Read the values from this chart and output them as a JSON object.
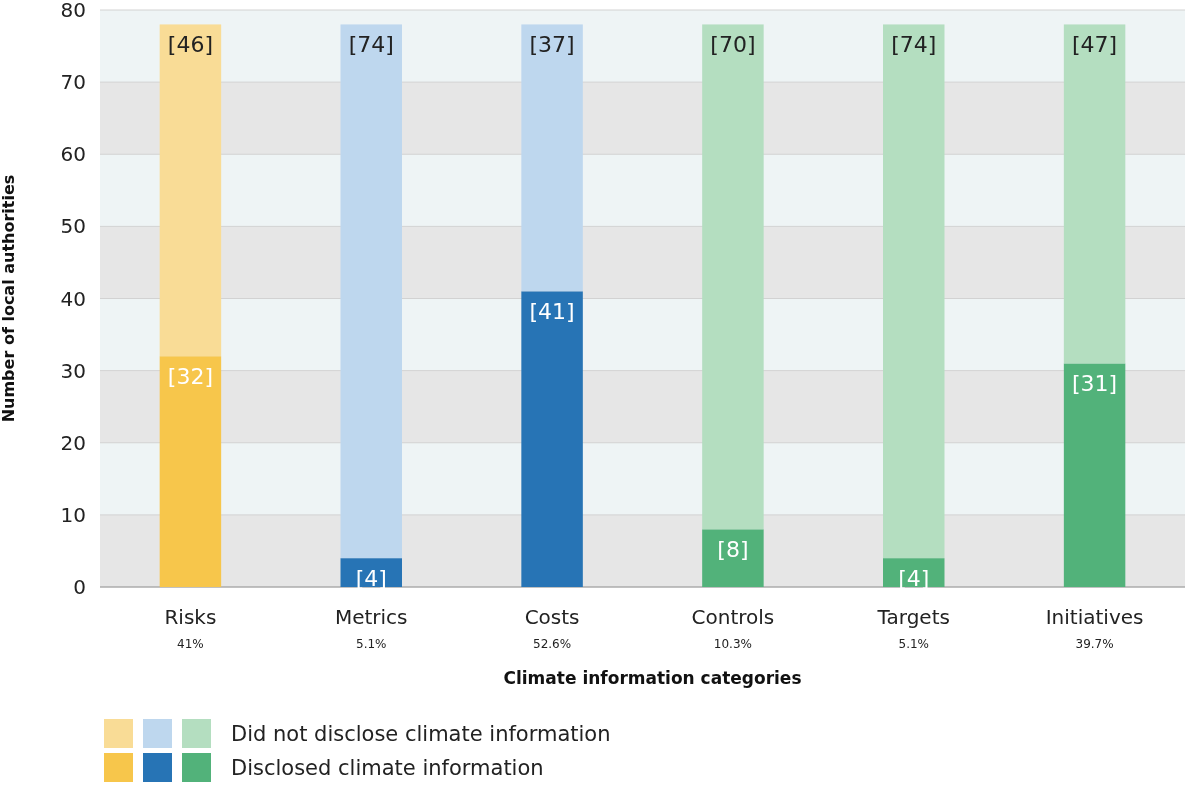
{
  "chart_data": {
    "type": "bar",
    "stacked": true,
    "xlabel": "Climate information categories",
    "ylabel": "Number of local authorities",
    "categories": [
      "Risks",
      "Metrics",
      "Costs",
      "Controls",
      "Targets",
      "Initiatives"
    ],
    "series": [
      {
        "name": "Disclosed climate information",
        "colors": [
          "#f7c64b",
          "#2774b5",
          "#2774b5",
          "#52b27a",
          "#52b27a",
          "#52b27a"
        ],
        "values": [
          32,
          4,
          41,
          8,
          4,
          31
        ],
        "value_labels": [
          "[32]",
          "[4]",
          "[41]",
          "[8]",
          "[4]",
          "[31]"
        ]
      },
      {
        "name": "Did not disclose climate information",
        "colors": [
          "#f9dc96",
          "#bed7ee",
          "#bed7ee",
          "#b4dec0",
          "#b4dec0",
          "#b4dec0"
        ],
        "values": [
          46,
          74,
          37,
          70,
          74,
          47
        ],
        "value_labels": [
          "[46]",
          "[74]",
          "[37]",
          "[70]",
          "[74]",
          "[47]"
        ]
      }
    ],
    "annotations": [
      "41%",
      "5.1%",
      "52.6%",
      "10.3%",
      "5.1%",
      "39.7%"
    ],
    "ylim": [
      0,
      80
    ],
    "yticks": [
      0,
      10,
      20,
      30,
      40,
      50,
      60,
      70,
      80
    ],
    "grid": "y",
    "legend": "bottom left"
  }
}
